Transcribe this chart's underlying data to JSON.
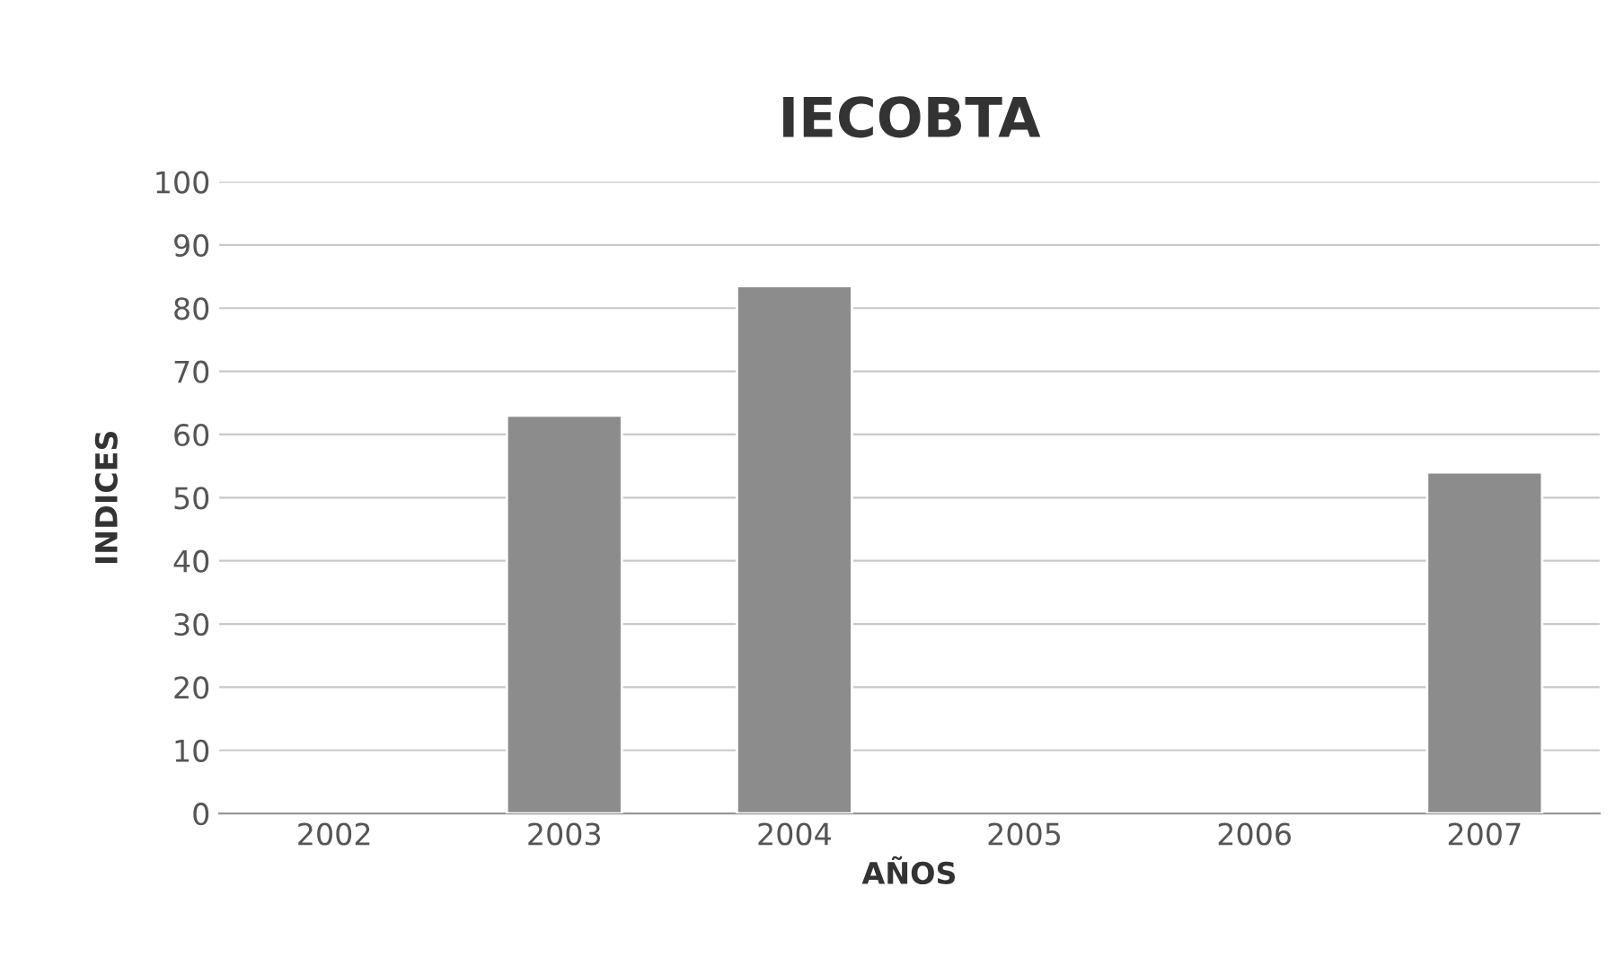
{
  "chart_data": {
    "type": "bar",
    "title": "IECOBTA",
    "xlabel": "AÑOS",
    "ylabel": "INDICES",
    "categories": [
      "2002",
      "2003",
      "2004",
      "2005",
      "2006",
      "2007"
    ],
    "values": [
      null,
      63,
      83.5,
      null,
      null,
      54
    ],
    "color": "#8c8c8c",
    "ylim": [
      0,
      100
    ],
    "yticks": [
      0,
      10,
      20,
      30,
      40,
      50,
      60,
      70,
      80,
      90,
      100
    ],
    "grid": "y"
  }
}
